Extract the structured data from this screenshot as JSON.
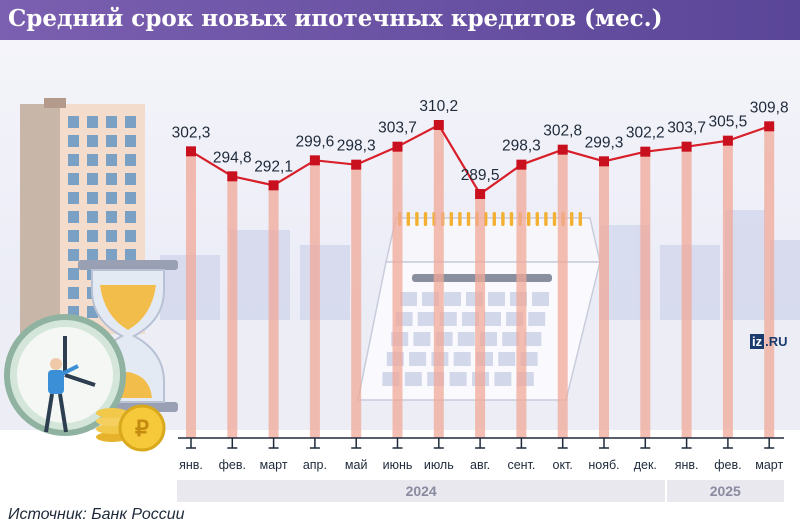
{
  "title": "Средний срок новых ипотечных кредитов (мес.)",
  "source": "Источник: Банк России",
  "logo": {
    "badge": "iz",
    "suffix": ".RU"
  },
  "colors": {
    "title_bg": "#6a52a6",
    "line": "#d8202a",
    "marker": "#c8101e",
    "column": "#f0a898",
    "year_bg": "#e8e8ee"
  },
  "chart_data": {
    "type": "line",
    "title": "Средний срок новых ипотечных кредитов (мес.)",
    "xlabel": "",
    "ylabel": "",
    "categories": [
      "янв.",
      "фев.",
      "март",
      "апр.",
      "май",
      "июнь",
      "июль",
      "авг.",
      "сент.",
      "окт.",
      "нояб.",
      "дек.",
      "янв.",
      "фев.",
      "март"
    ],
    "values": [
      302.3,
      294.8,
      292.1,
      299.6,
      298.3,
      303.7,
      310.2,
      289.5,
      298.3,
      302.8,
      299.3,
      302.2,
      303.7,
      305.5,
      309.8
    ],
    "value_labels": [
      "302,3",
      "294,8",
      "292,1",
      "299,6",
      "298,3",
      "303,7",
      "310,2",
      "289,5",
      "298,3",
      "302,8",
      "299,3",
      "302,2",
      "303,7",
      "305,5",
      "309,8"
    ],
    "years": [
      {
        "label": "2024",
        "count": 12
      },
      {
        "label": "2025",
        "count": 3
      }
    ],
    "grid": false,
    "legend": "none"
  }
}
